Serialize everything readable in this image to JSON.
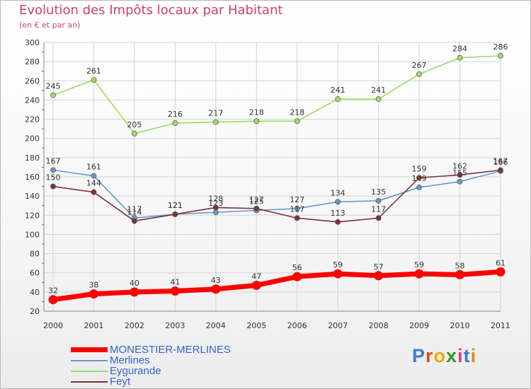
{
  "header": {
    "title": "Evolution des Impôts locaux par Habitant",
    "subtitle": "(en € et par an)"
  },
  "logo": {
    "text": "Proxiti",
    "letters": [
      "P",
      "r",
      "o",
      "x",
      "i",
      "t",
      "i"
    ],
    "colors": [
      "#3a7fd0",
      "#e04a1c",
      "#f2a900",
      "#2f9a2f",
      "#d63a8a",
      "#3a7fd0",
      "#e08c00"
    ]
  },
  "chart_data": {
    "type": "line",
    "title": "Evolution des Impôts locaux par Habitant",
    "subtitle": "(en € et par an)",
    "xlabel": "",
    "ylabel": "",
    "categories": [
      "2000",
      "2001",
      "2002",
      "2003",
      "2004",
      "2005",
      "2006",
      "2007",
      "2008",
      "2009",
      "2010",
      "2011"
    ],
    "ylim": [
      20,
      300
    ],
    "yticks": [
      20,
      40,
      60,
      80,
      100,
      120,
      140,
      160,
      180,
      200,
      220,
      240,
      260,
      280,
      300
    ],
    "grid": true,
    "legend_position": "bottom-left",
    "series": [
      {
        "name": "MONESTIER-MERLINES",
        "color": "#ff0000",
        "values": [
          32,
          38,
          40,
          41,
          43,
          47,
          56,
          59,
          57,
          59,
          58,
          61
        ],
        "labels": [
          "32",
          "38",
          "40",
          "41",
          "43",
          "47",
          "56",
          "59",
          "57",
          "59",
          "58",
          "61"
        ]
      },
      {
        "name": "Merlines",
        "color": "#6699cc",
        "values": [
          167,
          161,
          117,
          121,
          123,
          125,
          127,
          134,
          135,
          149,
          155,
          166
        ],
        "labels": [
          "167",
          "161",
          "117",
          "121",
          "123",
          "125",
          "127",
          "134",
          "135",
          "149",
          "155",
          "166"
        ]
      },
      {
        "name": "Eygurande",
        "color": "#99dd66",
        "values": [
          245,
          261,
          205,
          216,
          217,
          218,
          218,
          241,
          241,
          267,
          284,
          286
        ],
        "labels": [
          "245",
          "261",
          "205",
          "216",
          "217",
          "218",
          "218",
          "241",
          "241",
          "267",
          "284",
          "286"
        ]
      },
      {
        "name": "Feyt",
        "color": "#7a3336",
        "values": [
          150,
          144,
          114,
          121,
          128,
          127,
          117,
          113,
          117,
          159,
          162,
          167
        ],
        "labels": [
          "150",
          "144",
          "114",
          "121",
          "128",
          "127",
          "117",
          "113",
          "117",
          "159",
          "162",
          "167"
        ]
      }
    ]
  }
}
